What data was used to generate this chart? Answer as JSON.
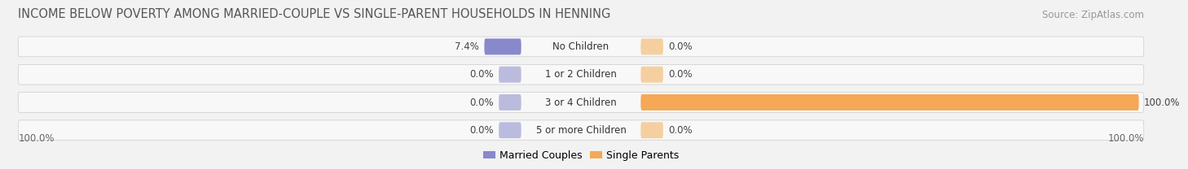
{
  "title": "INCOME BELOW POVERTY AMONG MARRIED-COUPLE VS SINGLE-PARENT HOUSEHOLDS IN HENNING",
  "source": "Source: ZipAtlas.com",
  "categories": [
    "No Children",
    "1 or 2 Children",
    "3 or 4 Children",
    "5 or more Children"
  ],
  "married_values": [
    7.4,
    0.0,
    0.0,
    0.0
  ],
  "single_values": [
    0.0,
    0.0,
    100.0,
    0.0
  ],
  "married_color": "#8888cc",
  "single_color": "#f5a855",
  "married_color_zero": "#bbbbdd",
  "single_color_zero": "#f5cfa0",
  "bg_color": "#f2f2f2",
  "bar_bg_color": "#e0e0e0",
  "row_bg_color": "#f8f8f8",
  "axis_max": 100.0,
  "min_bar_pct": 4.5,
  "left_label": "100.0%",
  "right_label": "100.0%",
  "title_fontsize": 10.5,
  "source_fontsize": 8.5,
  "value_fontsize": 8.5,
  "category_fontsize": 8.5,
  "legend_fontsize": 9
}
